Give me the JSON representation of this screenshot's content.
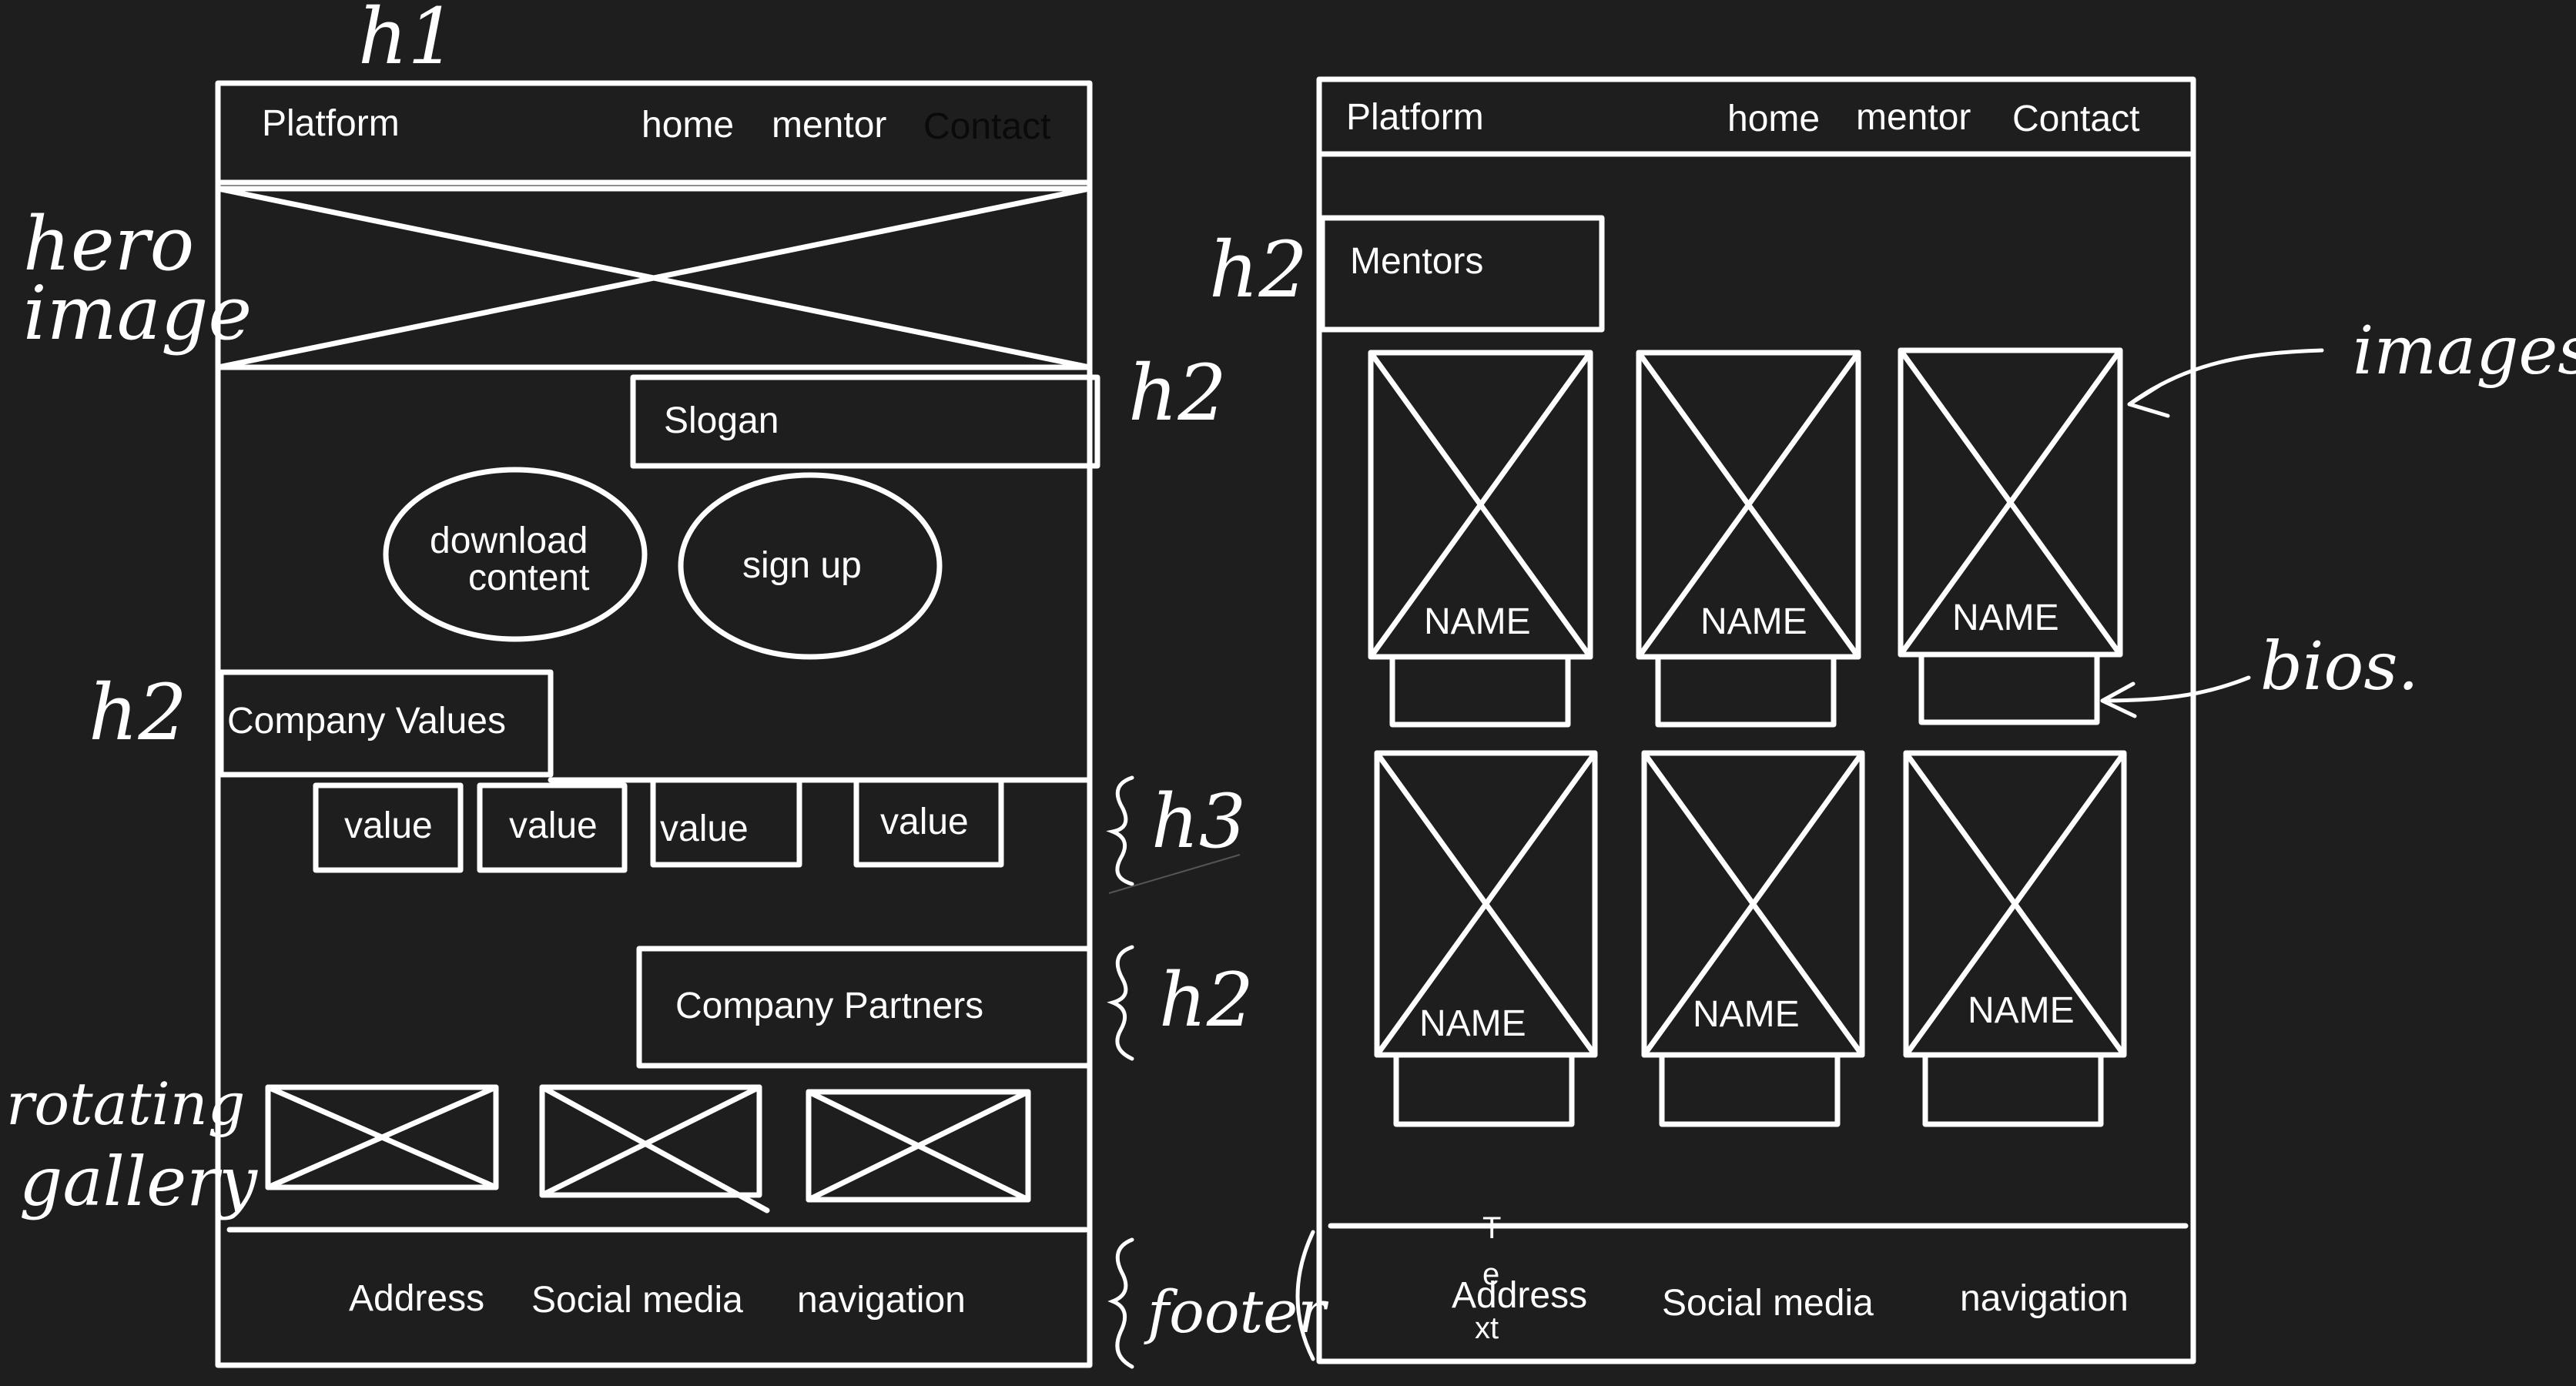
{
  "wireframe_home": {
    "nav": {
      "brand": "Platform",
      "links": [
        "home",
        "mentor",
        "Contact"
      ]
    },
    "slogan": "Slogan",
    "cta_buttons": [
      {
        "lines": [
          "download",
          "content"
        ]
      },
      {
        "lines": [
          "sign up"
        ]
      }
    ],
    "values_heading": "Company Values",
    "values": [
      "value",
      "value",
      "value",
      "value"
    ],
    "partners_heading": "Company Partners",
    "footer": [
      "Address",
      "Social media",
      "navigation"
    ]
  },
  "wireframe_mentors": {
    "nav": {
      "brand": "Platform",
      "links": [
        "home",
        "mentor",
        "Contact"
      ]
    },
    "heading": "Mentors",
    "cards": [
      "NAME",
      "NAME",
      "NAME",
      "NAME",
      "NAME",
      "NAME"
    ],
    "stray_text": [
      "T",
      "e",
      "xt"
    ],
    "footer": [
      "Address",
      "Social media",
      "navigation"
    ]
  },
  "annotations": {
    "h1": "h1",
    "hero_image": [
      "hero",
      "image"
    ],
    "h2_slogan": "h2",
    "h2_values": "h2",
    "h3_values": "h3",
    "h2_partners": "h2",
    "rotating_gallery": [
      "rotating",
      "gallery"
    ],
    "footer": "footer",
    "h2_mentors": "h2",
    "images": "images",
    "bios": "bios."
  }
}
